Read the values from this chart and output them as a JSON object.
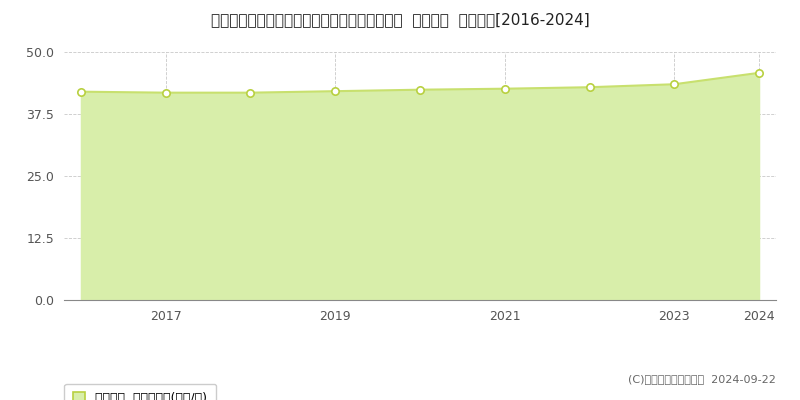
{
  "title": "千葉県松戸市小金きよしケ丘３丁目１６番１外  公示地価  地価推移[2016-2024]",
  "years": [
    2016,
    2017,
    2018,
    2019,
    2020,
    2021,
    2022,
    2023,
    2024
  ],
  "values": [
    42.0,
    41.8,
    41.8,
    42.1,
    42.4,
    42.6,
    42.9,
    43.5,
    45.8
  ],
  "ylim": [
    0,
    50
  ],
  "yticks": [
    0,
    12.5,
    25,
    37.5,
    50
  ],
  "line_color": "#c8e06e",
  "fill_color": "#d8eeaa",
  "marker_face_color": "#ffffff",
  "marker_edge_color": "#b8d040",
  "grid_color": "#bbbbbb",
  "bg_color": "#ffffff",
  "legend_label": "公示地価  平均坪単価(万円/坪)",
  "copyright_text": "(C)土地価格ドットコム  2024-09-22",
  "xtick_labels": [
    "2017",
    "2019",
    "2021",
    "2023",
    "2024"
  ],
  "xtick_positions": [
    2017,
    2019,
    2021,
    2023,
    2024
  ],
  "title_fontsize": 11,
  "tick_fontsize": 9,
  "legend_fontsize": 9
}
